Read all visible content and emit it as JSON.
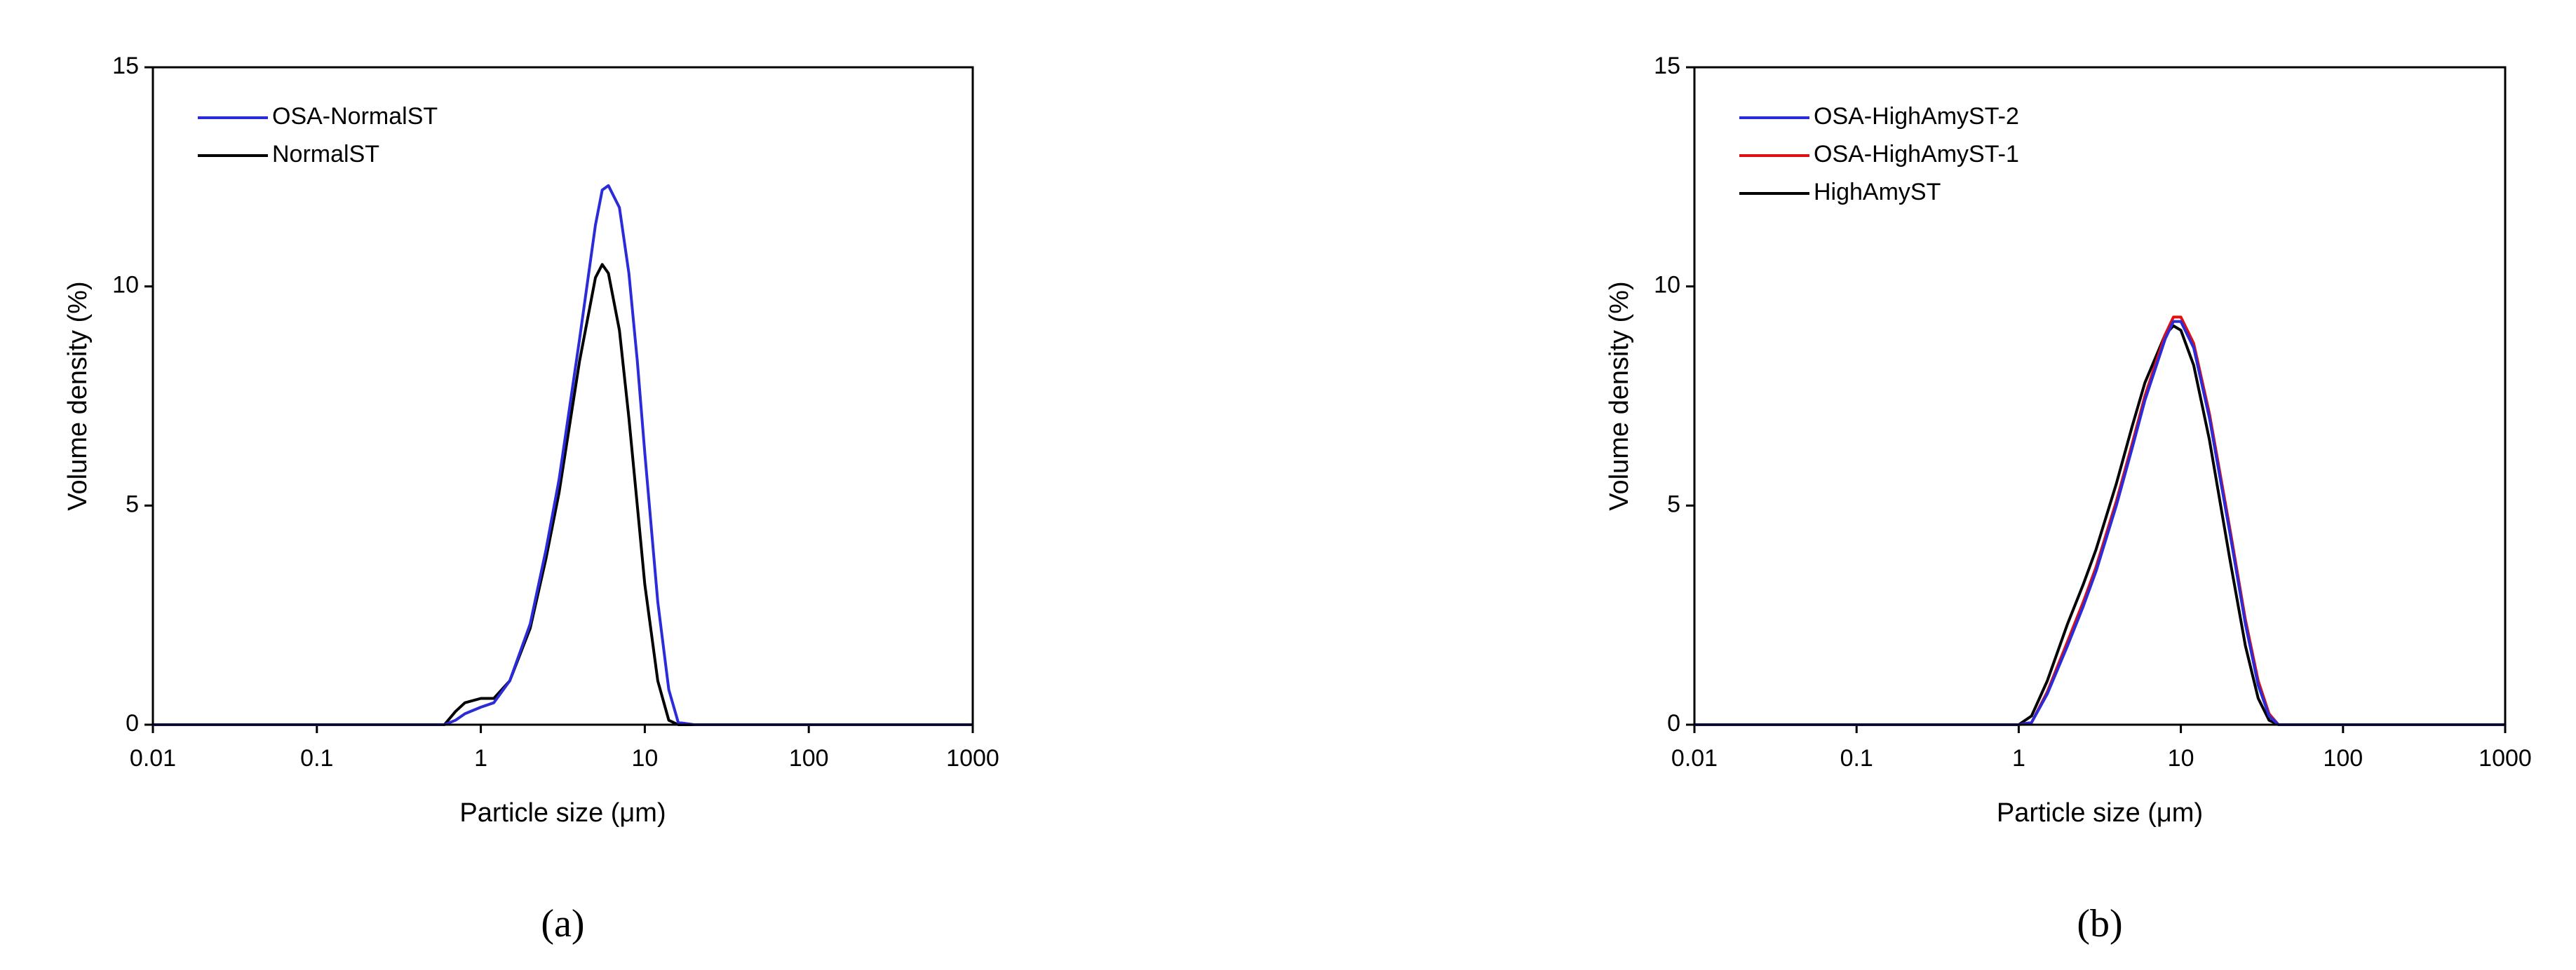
{
  "chart_data": [
    {
      "type": "line",
      "panel_label": "(a)",
      "xlabel": "Particle size (μm)",
      "ylabel": "Volume density (%)",
      "xscale": "log",
      "xlim": [
        0.01,
        1000
      ],
      "xticks": [
        0.01,
        0.1,
        1,
        10,
        100,
        1000
      ],
      "ylim": [
        0,
        15
      ],
      "yticks": [
        0,
        5,
        10,
        15
      ],
      "legend": "upper left",
      "x": [
        0.01,
        0.1,
        0.5,
        0.6,
        0.7,
        0.8,
        1,
        1.2,
        1.5,
        2,
        2.5,
        3,
        4,
        5,
        5.5,
        6,
        7,
        8,
        9,
        10,
        12,
        14,
        16,
        20,
        100,
        1000
      ],
      "series": [
        {
          "name": "OSA-NormalST",
          "color": "#2b2bd9",
          "values": [
            0,
            0,
            0,
            0,
            0.1,
            0.25,
            0.4,
            0.5,
            1.0,
            2.3,
            4.0,
            5.6,
            8.8,
            11.4,
            12.2,
            12.3,
            11.8,
            10.3,
            8.3,
            6.2,
            2.8,
            0.8,
            0.05,
            0,
            0,
            0
          ]
        },
        {
          "name": "NormalST",
          "color": "#000000",
          "values": [
            0,
            0,
            0,
            0,
            0.3,
            0.5,
            0.6,
            0.6,
            1.0,
            2.2,
            3.8,
            5.3,
            8.3,
            10.2,
            10.5,
            10.3,
            9.0,
            7.0,
            5.0,
            3.2,
            1.0,
            0.1,
            0,
            0,
            0,
            0
          ]
        }
      ]
    },
    {
      "type": "line",
      "panel_label": "(b)",
      "xlabel": "Particle size (μm)",
      "ylabel": "Volume density (%)",
      "xscale": "log",
      "xlim": [
        0.01,
        1000
      ],
      "xticks": [
        0.01,
        0.1,
        1,
        10,
        100,
        1000
      ],
      "ylim": [
        0,
        15
      ],
      "yticks": [
        0,
        5,
        10,
        15
      ],
      "legend": "upper left",
      "x": [
        0.01,
        0.1,
        1,
        1.2,
        1.5,
        2,
        2.5,
        3,
        4,
        5,
        6,
        8,
        9,
        10,
        12,
        15,
        20,
        25,
        30,
        35,
        40,
        100,
        1000
      ],
      "series": [
        {
          "name": "OSA-HighAmyST-2",
          "color": "#2b2bd9",
          "values": [
            0,
            0,
            0,
            0.05,
            0.7,
            1.8,
            2.7,
            3.5,
            5.0,
            6.3,
            7.4,
            8.8,
            9.2,
            9.2,
            8.6,
            7.0,
            4.4,
            2.3,
            0.9,
            0.2,
            0,
            0,
            0
          ]
        },
        {
          "name": "OSA-HighAmyST-1",
          "color": "#e01010",
          "values": [
            0,
            0,
            0,
            0.05,
            0.75,
            1.9,
            2.8,
            3.6,
            5.1,
            6.4,
            7.5,
            8.9,
            9.3,
            9.3,
            8.7,
            7.1,
            4.5,
            2.4,
            1.0,
            0.25,
            0,
            0,
            0
          ]
        },
        {
          "name": "HighAmyST",
          "color": "#000000",
          "values": [
            0,
            0,
            0,
            0.2,
            1.0,
            2.3,
            3.2,
            4.0,
            5.5,
            6.8,
            7.8,
            8.9,
            9.1,
            9.0,
            8.2,
            6.5,
            3.8,
            1.8,
            0.6,
            0.1,
            0,
            0,
            0
          ]
        }
      ]
    }
  ]
}
